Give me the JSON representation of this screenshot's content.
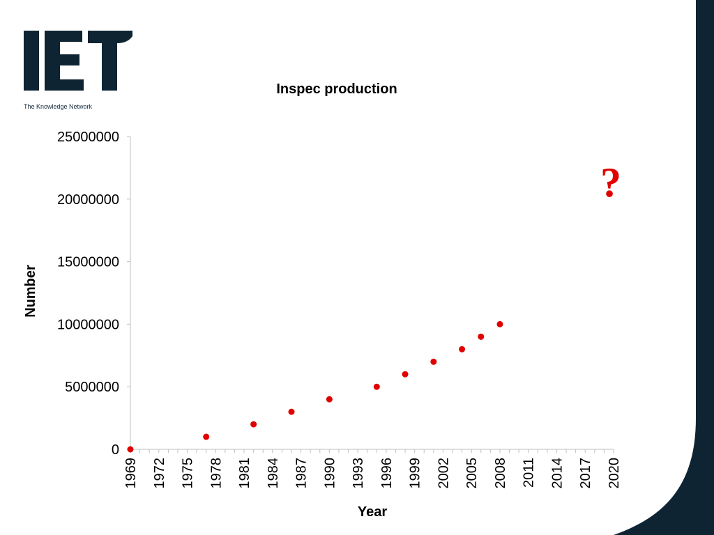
{
  "brand": {
    "logo_text": "IET",
    "tagline": "The Knowledge Network",
    "dark_color": "#0f2433"
  },
  "annotation": {
    "text": "?",
    "color": "#e00000"
  },
  "chart_data": {
    "type": "scatter",
    "title": "Inspec production",
    "xlabel": "Year",
    "ylabel": "Number",
    "xlim": [
      1969,
      2020
    ],
    "ylim": [
      0,
      25000000
    ],
    "x_ticks": [
      "1969",
      "1972",
      "1975",
      "1978",
      "1981",
      "1984",
      "1987",
      "1990",
      "1993",
      "1996",
      "1999",
      "2002",
      "2005",
      "2008",
      "2011",
      "2014",
      "2017",
      "2020"
    ],
    "y_ticks": [
      "0",
      "5000000",
      "10000000",
      "15000000",
      "20000000",
      "25000000"
    ],
    "marker_color": "#e00000",
    "grid": false,
    "points": [
      {
        "x": 1969,
        "y": 0
      },
      {
        "x": 1977,
        "y": 1000000
      },
      {
        "x": 1982,
        "y": 2000000
      },
      {
        "x": 1986,
        "y": 3000000
      },
      {
        "x": 1990,
        "y": 4000000
      },
      {
        "x": 1995,
        "y": 5000000
      },
      {
        "x": 1998,
        "y": 6000000
      },
      {
        "x": 2001,
        "y": 7000000
      },
      {
        "x": 2004,
        "y": 8000000
      },
      {
        "x": 2006,
        "y": 9000000
      },
      {
        "x": 2008,
        "y": 10000000
      }
    ]
  }
}
